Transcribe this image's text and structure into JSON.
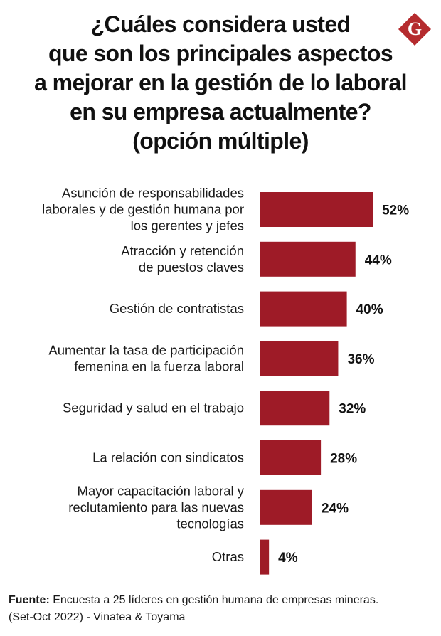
{
  "title_lines": [
    "¿Cuáles considera usted",
    "que son los principales aspectos",
    "a mejorar en la gestión de lo laboral",
    "en su empresa actualmente?",
    "(opción múltiple)"
  ],
  "logo": {
    "letter": "G",
    "icon": "g-logo-icon",
    "color": "#b52b2e"
  },
  "colors": {
    "bar": "#9e1b27"
  },
  "chart_data": {
    "type": "bar",
    "orientation": "horizontal",
    "categories": [
      [
        "Asunción de responsabilidades",
        "laborales y de gestión humana por",
        "los gerentes y jefes"
      ],
      [
        "Atracción y retención",
        "de puestos claves"
      ],
      [
        "Gestión de contratistas"
      ],
      [
        "Aumentar la tasa de participación",
        "femenina en la fuerza laboral"
      ],
      [
        "Seguridad y salud en el trabajo"
      ],
      [
        "La relación con sindicatos"
      ],
      [
        "Mayor capacitación laboral y",
        "reclutamiento para las nuevas",
        "tecnologías"
      ],
      [
        "Otras"
      ]
    ],
    "values": [
      52,
      44,
      40,
      36,
      32,
      28,
      24,
      4
    ],
    "value_labels": [
      "52%",
      "44%",
      "40%",
      "36%",
      "32%",
      "28%",
      "24%",
      "4%"
    ],
    "xlim": [
      0,
      100
    ],
    "grid": false
  },
  "footer": {
    "source_label": "Fuente:",
    "source_text": " Encuesta a 25 líderes en gestión humana de empresas mineras.",
    "line2": "(Set-Oct 2022) - Vinatea & Toyama"
  }
}
